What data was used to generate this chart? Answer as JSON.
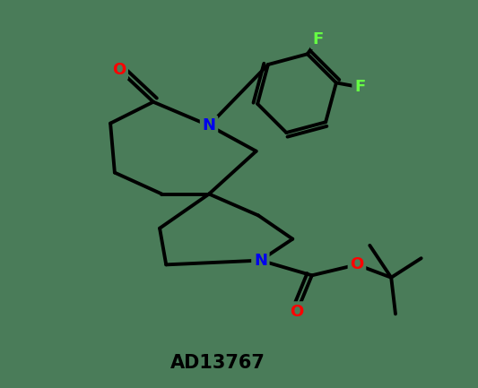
{
  "background_color": "#4a7c59",
  "molecule_name": "AD13767",
  "atom_colors": {
    "N": "#0000ee",
    "O": "#ff0000",
    "F": "#66ff44",
    "C": "#000000"
  },
  "bond_color": "#000000",
  "bond_width": 2.8,
  "font_size_label": 13,
  "font_size_id": 15,
  "text_color": "#000000"
}
